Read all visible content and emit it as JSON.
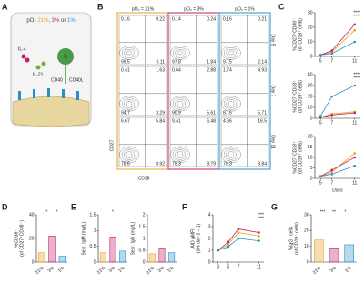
{
  "panel_labels": [
    "A",
    "B",
    "C",
    "D",
    "E",
    "F",
    "G"
  ],
  "panel_a": {
    "title": [
      "pO₂ ",
      "21%",
      ", ",
      "3%",
      " or ",
      "1%"
    ],
    "title_colors": [
      "#444",
      "#e8a020",
      "#444",
      "#c0206a",
      "#444",
      "#2a8fc8"
    ],
    "labels": [
      "IL-4",
      "IL-21",
      "B",
      "CD40",
      "CD40L"
    ]
  },
  "panel_b": {
    "headers": [
      "pO₂ = 21%",
      "pO₂ = 3%",
      "pO₂ = 1%"
    ],
    "colors": [
      "#e8a020",
      "#c0206a",
      "#2a8fc8"
    ],
    "rows": [
      "Day 5",
      "Day 7",
      "Day 11"
    ],
    "y_axis": "CD27",
    "x_axis": "CD38",
    "quadrants": [
      [
        [
          0.16,
          0.22,
          99.5,
          0.11
        ],
        [
          0.14,
          0.24,
          97.8,
          1.84
        ],
        [
          0.16,
          0.21,
          97.5,
          2.14
        ]
      ],
      [
        [
          0.41,
          1.63,
          94.7,
          3.29
        ],
        [
          0.64,
          2.88,
          90.9,
          5.61
        ],
        [
          1.74,
          4.93,
          87.6,
          5.71
        ]
      ],
      [
        [
          6.67,
          5.84,
          78.6,
          8.92
        ],
        [
          9.41,
          6.48,
          75.3,
          8.79
        ],
        [
          4.66,
          16.5,
          70.3,
          8.84
        ]
      ]
    ]
  },
  "panel_c": {
    "x_label": "Days",
    "x": [
      5,
      7,
      11
    ],
    "xlim": [
      4,
      12
    ],
    "xticks": [
      5,
      7,
      11
    ],
    "plots": [
      {
        "y_label": [
          "%CD27⁺CD38⁻",
          "(of CD19⁺ cells)"
        ],
        "ylim": [
          0,
          30
        ],
        "yticks": [
          0,
          10,
          20,
          30
        ],
        "annotations": [
          {
            "text": "****",
            "color": "#e8a020"
          },
          {
            "text": "****",
            "color": "#c0206a"
          }
        ],
        "series": [
          {
            "color": "#e8a020",
            "values": [
              1,
              3,
              18
            ]
          },
          {
            "color": "#c0206a",
            "values": [
              1,
              4,
              22
            ]
          },
          {
            "color": "#2a8fc8",
            "values": [
              1,
              2,
              10
            ]
          }
        ]
      },
      {
        "y_label": [
          "%CD27⁺CD38⁺",
          "(of CD19⁺ cells)"
        ],
        "ylim": [
          0,
          40
        ],
        "yticks": [
          0,
          10,
          20,
          30,
          40
        ],
        "annotations": [
          {
            "text": "****",
            "color": "#2a8fc8"
          },
          {
            "text": "****",
            "color": "#2a8fc8"
          }
        ],
        "series": [
          {
            "color": "#e8a020",
            "values": [
              1,
              4,
              6
            ]
          },
          {
            "color": "#c0206a",
            "values": [
              1,
              3,
              5
            ]
          },
          {
            "color": "#2a8fc8",
            "values": [
              2,
              20,
              30
            ]
          }
        ]
      },
      {
        "y_label": [
          "%CD27⁻CD38⁺",
          "(of CD19⁺ cells)"
        ],
        "ylim": [
          0,
          20
        ],
        "yticks": [
          0,
          5,
          10,
          15,
          20
        ],
        "annotations": [],
        "series": [
          {
            "color": "#e8a020",
            "values": [
              1,
              3,
              12
            ]
          },
          {
            "color": "#c0206a",
            "values": [
              1,
              4,
              10
            ]
          },
          {
            "color": "#2a8fc8",
            "values": [
              1,
              2,
              6
            ]
          }
        ]
      }
    ]
  },
  "panel_d": {
    "y_label": [
      "%CD38⁺",
      "(of CD27⁺CD38⁻)"
    ],
    "categories": [
      "21%",
      "3%",
      "1%"
    ],
    "colors": [
      "#e8a020",
      "#c0206a",
      "#2a8fc8"
    ],
    "values": [
      8,
      22,
      5
    ],
    "ylim": [
      0,
      40
    ],
    "yticks": [
      0,
      20,
      40
    ],
    "annotations": [
      {
        "text": "*",
        "color": "#222"
      },
      {
        "text": "*",
        "color": "#222"
      }
    ]
  },
  "panel_e": [
    {
      "y_label": [
        "Secr. IgM (mg/L)"
      ],
      "categories": [
        "21%",
        "3%",
        "1%"
      ],
      "colors": [
        "#e8a020",
        "#c0206a",
        "#2a8fc8"
      ],
      "values": [
        0.3,
        0.8,
        0.35
      ],
      "ylim": [
        0,
        1.5
      ],
      "yticks": [
        0,
        0.5,
        1,
        1.5
      ],
      "annotations": [
        {
          "text": "*",
          "color": "#222"
        }
      ]
    },
    {
      "y_label": [
        "Secr. IgG (mg/L)"
      ],
      "categories": [
        "21%",
        "3%",
        "1%"
      ],
      "colors": [
        "#e8a020",
        "#c0206a",
        "#2a8fc8"
      ],
      "values": [
        0.35,
        0.6,
        0.4
      ],
      "ylim": [
        0,
        2
      ],
      "yticks": [
        0,
        0.5,
        1,
        1.5,
        2
      ],
      "annotations": []
    }
  ],
  "panel_f": {
    "y_label": [
      "AID gMFI",
      "(3% day 3 = 1)"
    ],
    "x": [
      3,
      5,
      7,
      11
    ],
    "xlim": [
      2,
      12
    ],
    "xticks": [
      3,
      5,
      7,
      11
    ],
    "ylim": [
      0,
      4
    ],
    "yticks": [
      0,
      1,
      2,
      3,
      4
    ],
    "annotations": [
      {
        "text": "***",
        "color": "#c0206a"
      },
      {
        "text": "***",
        "color": "#2a8fc8"
      }
    ],
    "series": [
      {
        "color": "#e8a020",
        "values": [
          1,
          1.5,
          2.5,
          2.2
        ]
      },
      {
        "color": "#c0206a",
        "values": [
          1,
          1.7,
          2.8,
          2.5
        ]
      },
      {
        "color": "#2a8fc8",
        "values": [
          1,
          1.3,
          2,
          1.8
        ]
      }
    ]
  },
  "panel_g": {
    "y_label": [
      "%IgG⁺ cells",
      "(of CD19⁺ cells)"
    ],
    "categories": [
      "21%",
      "3%",
      "1%"
    ],
    "colors": [
      "#e8a020",
      "#c0206a",
      "#2a8fc8"
    ],
    "values": [
      14,
      9,
      11
    ],
    "ylim": [
      0,
      30
    ],
    "yticks": [
      0,
      10,
      20,
      30
    ],
    "annotations": [
      {
        "text": "***",
        "color": "#222"
      },
      {
        "text": "**",
        "color": "#222"
      },
      {
        "text": "*",
        "color": "#222"
      }
    ]
  }
}
